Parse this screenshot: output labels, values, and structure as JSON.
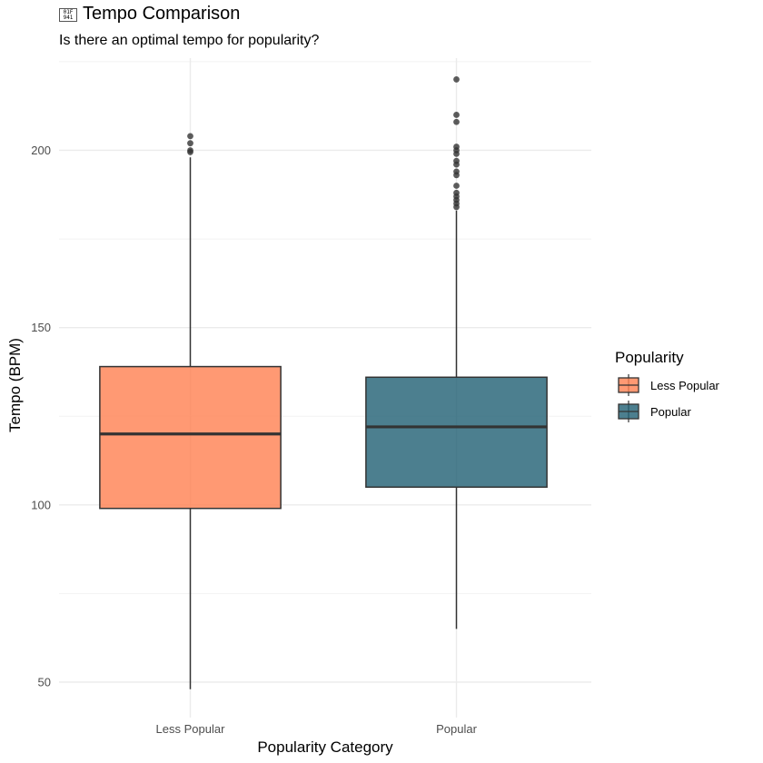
{
  "title": "Tempo Comparison",
  "title_icon": "missing-glyph-icon",
  "subtitle": "Is there an optimal tempo for popularity?",
  "chart_data": {
    "type": "box",
    "title": "Tempo Comparison",
    "subtitle": "Is there an optimal tempo for popularity?",
    "xlabel": "Popularity Category",
    "ylabel": "Tempo (BPM)",
    "ylim": [
      40,
      226
    ],
    "y_ticks": [
      50,
      100,
      150,
      200
    ],
    "grid": true,
    "legend": {
      "title": "Popularity",
      "position": "right"
    },
    "categories": [
      "Less Popular",
      "Popular"
    ],
    "series": [
      {
        "name": "Less Popular",
        "color": "#FF7F50",
        "min": 48,
        "q1": 99,
        "median": 120,
        "q3": 139,
        "max": 198,
        "outliers": [
          204,
          202,
          200,
          199.5
        ]
      },
      {
        "name": "Popular",
        "color": "#1F5F73",
        "min": 65,
        "q1": 105,
        "median": 122,
        "q3": 136,
        "max": 183,
        "outliers": [
          220,
          210,
          208,
          201,
          200,
          199,
          197,
          196,
          194,
          193,
          190,
          188,
          187,
          186,
          185,
          184
        ]
      }
    ]
  }
}
